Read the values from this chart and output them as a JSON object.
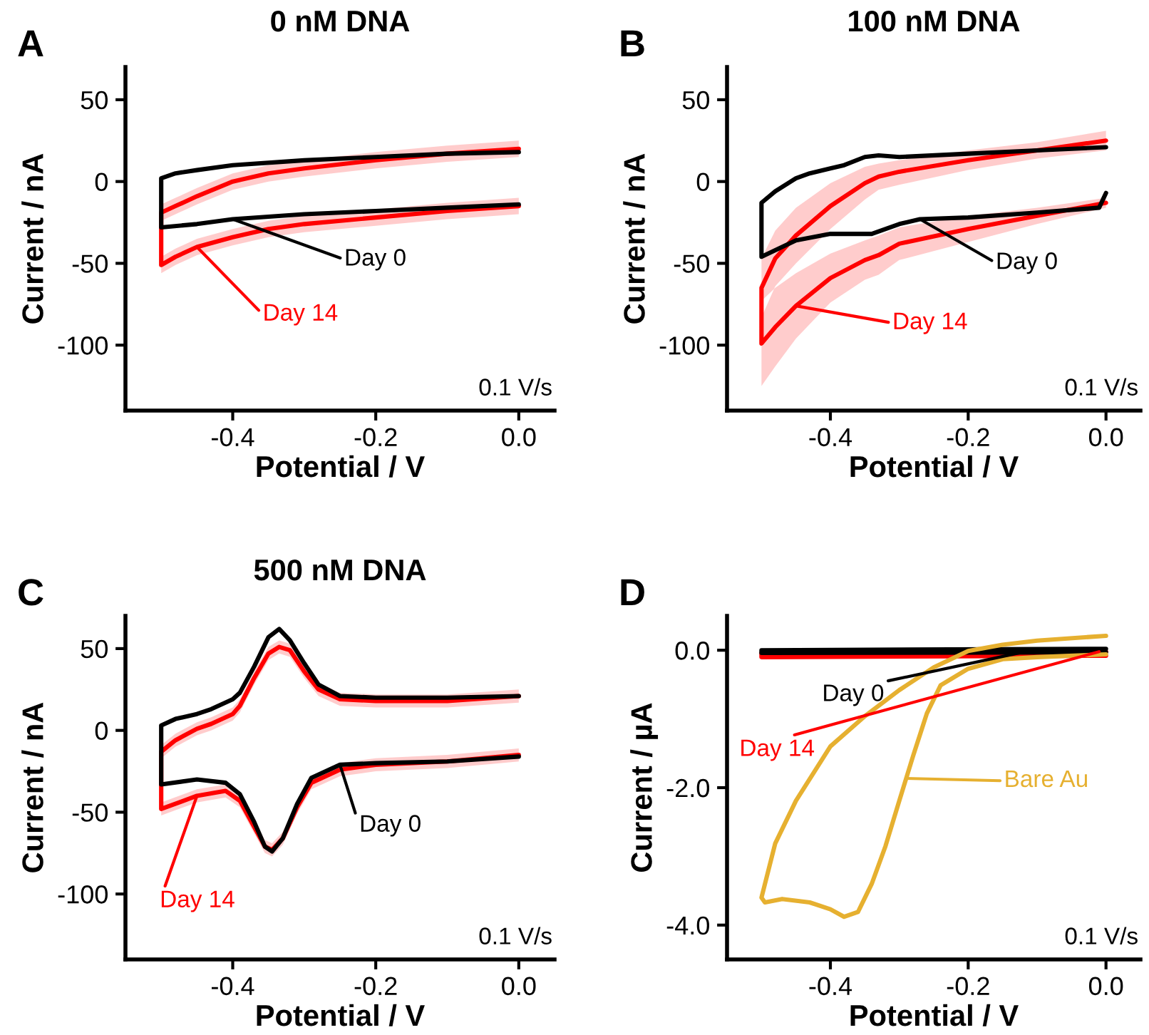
{
  "chart_data": [
    {
      "type": "line",
      "title": "0 nM DNA",
      "xlabel": "Potential / V",
      "ylabel": "Current / nA",
      "annotations": [
        "A",
        "0.1 V/s"
      ],
      "xlim": [
        -0.55,
        0.05
      ],
      "ylim": [
        -140,
        70
      ],
      "xticks": [
        {
          "value": -0.4,
          "label": "-0.4"
        },
        {
          "value": -0.2,
          "label": "-0.2"
        },
        {
          "value": 0,
          "label": "0.0"
        }
      ],
      "yticks": [
        -100,
        -50,
        0,
        50
      ],
      "series": [
        {
          "name": "Day 14",
          "color": "#ff0000",
          "x": [
            0,
            -0.1,
            -0.2,
            -0.3,
            -0.35,
            -0.4,
            -0.45,
            -0.48,
            -0.5,
            -0.5,
            -0.48,
            -0.45,
            -0.4,
            -0.35,
            -0.3,
            -0.2,
            -0.1,
            0
          ],
          "values": [
            20,
            17,
            13,
            8,
            5,
            0,
            -9,
            -15,
            -19,
            -51,
            -46,
            -40,
            -34,
            -29,
            -26,
            -22,
            -18,
            -15
          ],
          "lower": [
            15,
            12,
            8,
            3,
            0,
            -5,
            -14,
            -20,
            -24,
            -56,
            -51,
            -45,
            -39,
            -34,
            -31,
            -27,
            -23,
            -20
          ],
          "upper": [
            25,
            22,
            18,
            13,
            10,
            5,
            -4,
            -10,
            -14,
            -46,
            -41,
            -35,
            -29,
            -24,
            -21,
            -17,
            -13,
            -10
          ]
        },
        {
          "name": "Day 0",
          "color": "#000000",
          "x": [
            0,
            -0.1,
            -0.2,
            -0.3,
            -0.4,
            -0.45,
            -0.48,
            -0.5,
            -0.5,
            -0.45,
            -0.4,
            -0.3,
            -0.2,
            -0.1,
            0
          ],
          "values": [
            18,
            17,
            15,
            13,
            10,
            7,
            5,
            2,
            -28,
            -26,
            -23,
            -20,
            -18,
            -16,
            -14
          ]
        }
      ]
    },
    {
      "type": "line",
      "title": "100 nM DNA",
      "xlabel": "Potential / V",
      "ylabel": "Current / nA",
      "annotations": [
        "B",
        "0.1 V/s"
      ],
      "xlim": [
        -0.55,
        0.05
      ],
      "ylim": [
        -140,
        70
      ],
      "xticks": [
        {
          "value": -0.4,
          "label": "-0.4"
        },
        {
          "value": -0.2,
          "label": "-0.2"
        },
        {
          "value": 0,
          "label": "0.0"
        }
      ],
      "yticks": [
        -100,
        -50,
        0,
        50
      ],
      "series": [
        {
          "name": "Day 14",
          "color": "#ff0000",
          "x": [
            0,
            -0.1,
            -0.2,
            -0.3,
            -0.33,
            -0.35,
            -0.4,
            -0.45,
            -0.48,
            -0.5,
            -0.5,
            -0.48,
            -0.45,
            -0.4,
            -0.35,
            -0.33,
            -0.3,
            -0.2,
            -0.1,
            0
          ],
          "values": [
            25,
            19,
            13,
            6,
            3,
            -1,
            -15,
            -33,
            -47,
            -65,
            -99,
            -89,
            -76,
            -59,
            -48,
            -45,
            -38,
            -29,
            -21,
            -13
          ],
          "lower": [
            19,
            14,
            7,
            -2,
            -5,
            -11,
            -29,
            -50,
            -64,
            -83,
            -125,
            -113,
            -96,
            -74,
            -60,
            -57,
            -48,
            -37,
            -26,
            -16
          ],
          "upper": [
            31,
            24,
            19,
            13,
            11,
            9,
            -1,
            -16,
            -30,
            -47,
            -73,
            -65,
            -56,
            -44,
            -36,
            -33,
            -28,
            -21,
            -16,
            -10
          ]
        },
        {
          "name": "Day 0",
          "color": "#000000",
          "x": [
            0,
            -0.1,
            -0.2,
            -0.3,
            -0.33,
            -0.35,
            -0.38,
            -0.4,
            -0.43,
            -0.45,
            -0.48,
            -0.5,
            -0.5,
            -0.48,
            -0.45,
            -0.4,
            -0.37,
            -0.34,
            -0.3,
            -0.27,
            -0.2,
            -0.1,
            -0.01,
            0
          ],
          "values": [
            21,
            19,
            17,
            15,
            16,
            15,
            10,
            8,
            5,
            2,
            -6,
            -13,
            -46,
            -42,
            -36,
            -32,
            -32,
            -32,
            -26,
            -23,
            -22,
            -19,
            -16,
            -7
          ]
        }
      ]
    },
    {
      "type": "line",
      "title": "500 nM DNA",
      "xlabel": "Potential / V",
      "ylabel": "Current / nA",
      "annotations": [
        "C",
        "0.1 V/s"
      ],
      "xlim": [
        -0.55,
        0.05
      ],
      "ylim": [
        -140,
        70
      ],
      "xticks": [
        {
          "value": -0.4,
          "label": "-0.4"
        },
        {
          "value": -0.2,
          "label": "-0.2"
        },
        {
          "value": 0,
          "label": "0.0"
        }
      ],
      "yticks": [
        -100,
        -50,
        0,
        50
      ],
      "series": [
        {
          "name": "Day 14",
          "color": "#ff0000",
          "x": [
            0,
            -0.1,
            -0.2,
            -0.25,
            -0.28,
            -0.3,
            -0.32,
            -0.335,
            -0.35,
            -0.37,
            -0.39,
            -0.4,
            -0.43,
            -0.45,
            -0.48,
            -0.5,
            -0.5,
            -0.45,
            -0.41,
            -0.39,
            -0.37,
            -0.355,
            -0.345,
            -0.33,
            -0.31,
            -0.29,
            -0.25,
            -0.2,
            -0.1,
            0
          ],
          "values": [
            21,
            18,
            18,
            19,
            25,
            36,
            49,
            51,
            47,
            32,
            15,
            10,
            4,
            1,
            -6,
            -13,
            -48,
            -40,
            -37,
            -43,
            -59,
            -71,
            -73,
            -66,
            -47,
            -32,
            -24,
            -21,
            -19,
            -15
          ],
          "lower": [
            17,
            14,
            14,
            15,
            21,
            32,
            45,
            47,
            43,
            28,
            11,
            6,
            0,
            -3,
            -10,
            -17,
            -52,
            -44,
            -41,
            -47,
            -63,
            -75,
            -77,
            -70,
            -51,
            -36,
            -28,
            -25,
            -23,
            -19
          ],
          "upper": [
            25,
            22,
            22,
            23,
            29,
            40,
            53,
            55,
            51,
            36,
            19,
            14,
            8,
            5,
            -2,
            -9,
            -44,
            -36,
            -33,
            -39,
            -55,
            -67,
            -69,
            -62,
            -43,
            -28,
            -20,
            -17,
            -15,
            -11
          ]
        },
        {
          "name": "Day 0",
          "color": "#000000",
          "x": [
            0,
            -0.1,
            -0.2,
            -0.25,
            -0.28,
            -0.3,
            -0.32,
            -0.335,
            -0.35,
            -0.37,
            -0.39,
            -0.4,
            -0.43,
            -0.45,
            -0.48,
            -0.5,
            -0.5,
            -0.45,
            -0.41,
            -0.39,
            -0.37,
            -0.355,
            -0.345,
            -0.33,
            -0.31,
            -0.29,
            -0.25,
            -0.2,
            -0.1,
            0
          ],
          "values": [
            21,
            20,
            20,
            21,
            28,
            41,
            55,
            62,
            57,
            39,
            23,
            19,
            13,
            10,
            7,
            3,
            -33,
            -30,
            -32,
            -39,
            -56,
            -71,
            -74,
            -66,
            -45,
            -29,
            -21,
            -20,
            -19,
            -16
          ]
        }
      ]
    },
    {
      "type": "line",
      "xlabel": "Potential / V",
      "ylabel": "Current / µA",
      "annotations": [
        "D",
        "0.1 V/s"
      ],
      "xlim": [
        -0.55,
        0.05
      ],
      "ylim": [
        -4.5,
        0.5
      ],
      "xticks": [
        {
          "value": -0.4,
          "label": "-0.4"
        },
        {
          "value": -0.2,
          "label": "-0.2"
        },
        {
          "value": 0,
          "label": "0.0"
        }
      ],
      "yticks": [
        {
          "value": -4,
          "label": "-4.0"
        },
        {
          "value": -2,
          "label": "-2.0"
        },
        {
          "value": 0,
          "label": "0.0"
        }
      ],
      "series": [
        {
          "name": "Day 14",
          "color": "#ff0000",
          "x": [
            0,
            -0.5,
            -0.5,
            0
          ],
          "values": [
            -0.02,
            -0.04,
            -0.1,
            -0.08
          ]
        },
        {
          "name": "Day 0",
          "color": "#000000",
          "x": [
            0,
            -0.5,
            -0.5,
            0
          ],
          "values": [
            0.02,
            0.0,
            -0.04,
            -0.03
          ]
        },
        {
          "name": "Bare Au",
          "color": "#e6b030",
          "x": [
            0,
            -0.1,
            -0.15,
            -0.2,
            -0.25,
            -0.3,
            -0.35,
            -0.4,
            -0.45,
            -0.48,
            -0.5,
            -0.495,
            -0.47,
            -0.43,
            -0.4,
            -0.38,
            -0.36,
            -0.34,
            -0.32,
            -0.3,
            -0.28,
            -0.26,
            -0.24,
            -0.2,
            -0.15,
            -0.1,
            0
          ],
          "values": [
            0.21,
            0.14,
            0.08,
            -0.01,
            -0.25,
            -0.58,
            -0.96,
            -1.4,
            -2.19,
            -2.81,
            -3.6,
            -3.67,
            -3.62,
            -3.67,
            -3.77,
            -3.88,
            -3.81,
            -3.4,
            -2.85,
            -2.19,
            -1.54,
            -0.92,
            -0.51,
            -0.27,
            -0.13,
            -0.1,
            -0.06
          ]
        }
      ]
    }
  ]
}
